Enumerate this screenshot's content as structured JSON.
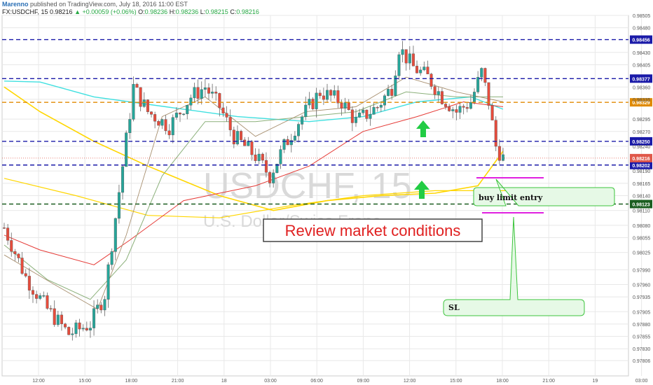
{
  "header": {
    "author": "Marenno",
    "published": "published on TradingView.com, July 18, 2016 11:00 EST",
    "symbol": "FX:USDCHF, 15",
    "last": "0.98216",
    "change": "+0.00059 (+0.06%)",
    "o_label": "O:",
    "o_value": "0.98236",
    "h_label": "H:",
    "h_value": "0.98236",
    "l_label": "L:",
    "l_value": "0.98215",
    "c_label": "C:",
    "c_value": "0.98216"
  },
  "watermark": {
    "ticker": "USDCHF, 15",
    "name": "U.S. Dollar/Swiss Franc"
  },
  "chart_data": {
    "type": "candlestick",
    "symbol": "FX:USDCHF",
    "interval": "15",
    "ylim": [
      0.97775,
      0.98505
    ],
    "y_ticks": [
      "0.98505",
      "0.98480",
      "0.98430",
      "0.98405",
      "0.98360",
      "0.98335",
      "0.98295",
      "0.98270",
      "0.98240",
      "0.98190",
      "0.98165",
      "0.98140",
      "0.98110",
      "0.98080",
      "0.98055",
      "0.98025",
      "0.97990",
      "0.97960",
      "0.97935",
      "0.97905",
      "0.97880",
      "0.97855",
      "0.97830",
      "0.97806"
    ],
    "x_ticks": [
      "12:00",
      "15:00",
      "18:00",
      "21:00",
      "18",
      "03:00",
      "06:00",
      "09:00",
      "12:00",
      "15:00",
      "18:00",
      "21:00",
      "19",
      "03:00"
    ],
    "horizontal_levels": [
      {
        "price": 0.98456,
        "label": "0.98456",
        "color": "#1a1aa8",
        "style": "dashed"
      },
      {
        "price": 0.98377,
        "label": "0.98377",
        "color": "#1a1aa8",
        "style": "dashed"
      },
      {
        "price": 0.98329,
        "label": "0.98329",
        "color": "#e08a00",
        "style": "dashed"
      },
      {
        "price": 0.9825,
        "label": "0.98250",
        "color": "#1a1aa8",
        "style": "dashed"
      },
      {
        "price": 0.98202,
        "label": "0.98202",
        "color": "#1a1aa8",
        "style": "dashed"
      },
      {
        "price": 0.98123,
        "label": "0.98123",
        "color": "#1b5e20",
        "style": "dashed"
      }
    ],
    "current_price": {
      "label": "0.98216",
      "price": 0.98216,
      "color": "#e0584a"
    },
    "annotations": {
      "title_box": "Review market conditions",
      "entry_label": "buy limit entry",
      "sl_label": "SL"
    },
    "colors": {
      "up": "#26a69a",
      "down": "#e74c3c",
      "grid": "#e8e8e8",
      "ma_yellow": "#ffd600",
      "ma_cyan": "#40e0e0",
      "ma_red": "#e53935",
      "ma_green": "#8bb07a",
      "ma_olive": "#a89070",
      "magenta": "#e020e0"
    }
  }
}
